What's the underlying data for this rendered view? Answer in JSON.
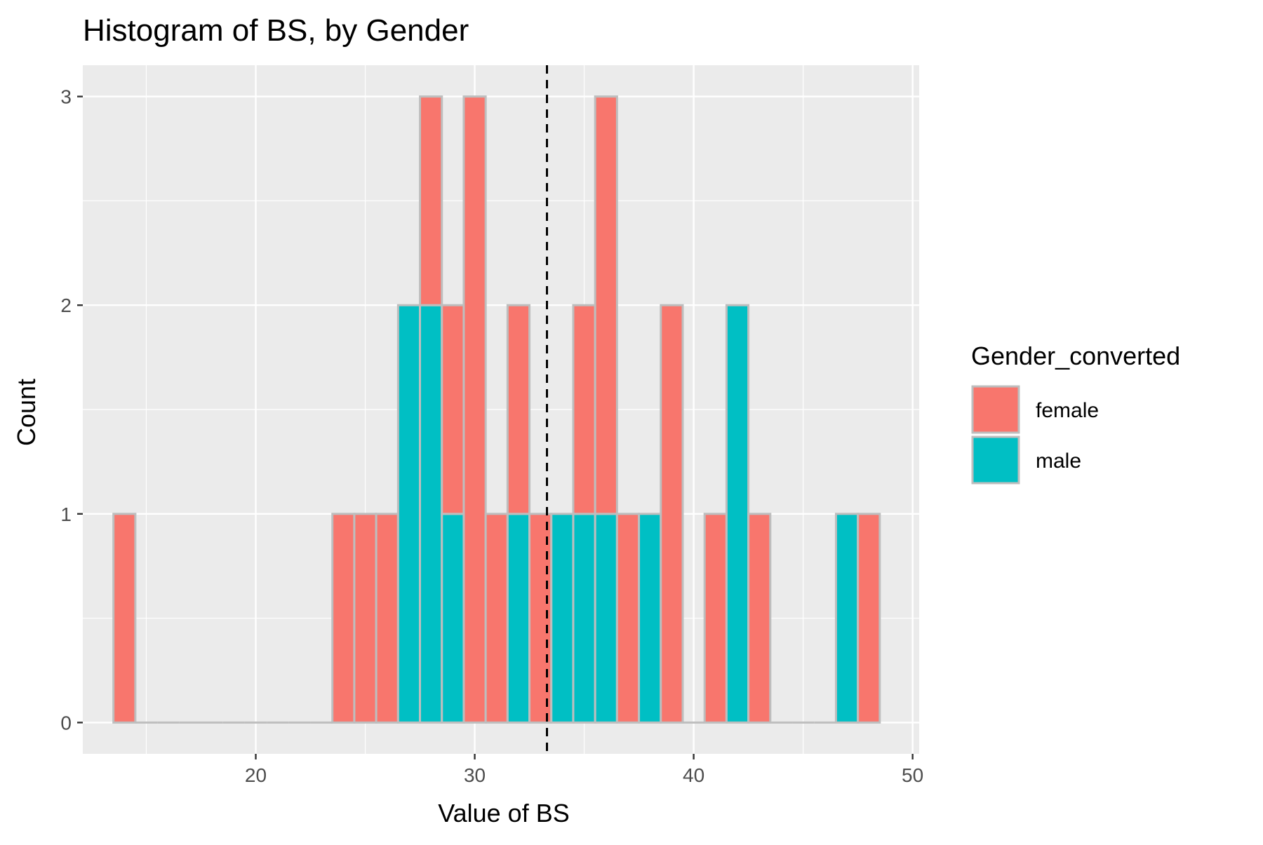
{
  "colors": {
    "female": "#F8766D",
    "male": "#00BFC4",
    "bar_outline": "#BEBEBE",
    "panel_bg": "#EBEBEB",
    "grid": "#FFFFFF",
    "tick_text": "#4D4D4D",
    "mean_line": "#000000"
  },
  "chart_data": {
    "type": "bar",
    "title": "Histogram of BS, by Gender",
    "xlabel": "Value of BS",
    "ylabel": "Count",
    "xlim": [
      12.1,
      50.3
    ],
    "ylim": [
      -0.15,
      3.15
    ],
    "x_ticks": [
      20,
      30,
      40,
      50
    ],
    "y_ticks": [
      0,
      1,
      2,
      3
    ],
    "grid": true,
    "stacked": true,
    "bin_width": 1.0,
    "bin_centers": [
      14,
      15,
      16,
      17,
      18,
      19,
      20,
      21,
      22,
      23,
      24,
      25,
      26,
      27,
      28,
      29,
      30,
      31,
      32,
      33,
      34,
      35,
      36,
      37,
      38,
      39,
      40,
      41,
      42,
      43,
      44,
      45,
      46,
      47,
      48
    ],
    "series": [
      {
        "name": "female",
        "values": [
          1,
          0,
          0,
          0,
          0,
          0,
          0,
          0,
          0,
          0,
          1,
          1,
          1,
          0,
          1,
          1,
          3,
          1,
          1,
          1,
          0,
          1,
          2,
          1,
          0,
          2,
          0,
          1,
          0,
          1,
          0,
          0,
          0,
          0,
          1
        ]
      },
      {
        "name": "male",
        "values": [
          0,
          0,
          0,
          0,
          0,
          0,
          0,
          0,
          0,
          0,
          0,
          0,
          0,
          2,
          2,
          1,
          0,
          0,
          1,
          0,
          1,
          1,
          1,
          0,
          1,
          0,
          0,
          0,
          2,
          0,
          0,
          0,
          0,
          1,
          0
        ]
      }
    ],
    "mean_line": {
      "x": 33.3,
      "style": "dashed"
    },
    "legend": {
      "title": "Gender_converted",
      "position": "right",
      "entries": [
        "female",
        "male"
      ]
    }
  }
}
